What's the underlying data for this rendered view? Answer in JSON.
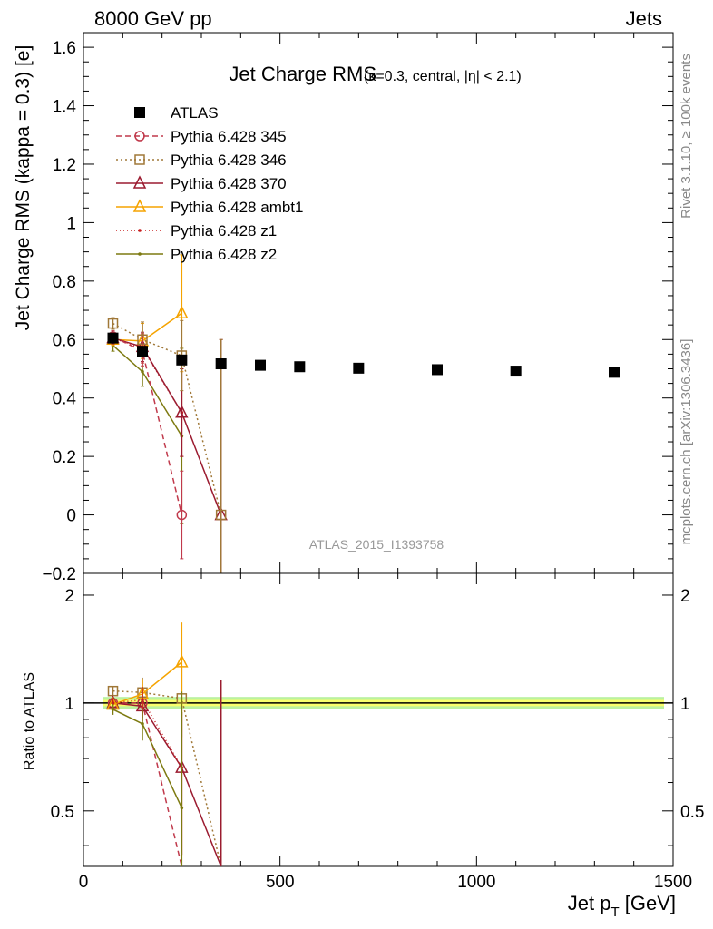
{
  "header": {
    "left": "8000 GeV pp",
    "right": "Jets"
  },
  "side": {
    "rivet": "Rivet 3.1.10, ≥ 100k events",
    "mcplots": "mcplots.cern.ch [arXiv:1306.3436]"
  },
  "chart_data": [
    {
      "type": "scatter",
      "title": "Jet Charge RMS",
      "subtitle": "(κ=0.3, central, |η| < 2.1)",
      "xlabel": "Jet p",
      "xlabel_sub": "T",
      "xlabel_unit": " [GeV]",
      "ylabel": "Jet Charge RMS (kappa = 0.3) [e]",
      "watermark": "ATLAS_2015_I1393758",
      "xlim": [
        0,
        1500
      ],
      "ylim": [
        -0.2,
        1.65
      ],
      "xticks": [
        0,
        500,
        1000,
        1500
      ],
      "yticks": [
        -0.2,
        0,
        0.2,
        0.4,
        0.6,
        0.8,
        1,
        1.2,
        1.4,
        1.6
      ],
      "ytick_labels": [
        "−0.2",
        "0",
        "0.2",
        "0.4",
        "0.6",
        "0.8",
        "1",
        "1.2",
        "1.4",
        "1.6"
      ],
      "legend_position": "top-left",
      "series": [
        {
          "name": "ATLAS",
          "color": "#000000",
          "marker": "square-filled",
          "dash": "none",
          "x": [
            75,
            150,
            250,
            350,
            450,
            550,
            700,
            900,
            1100,
            1350
          ],
          "y": [
            0.605,
            0.56,
            0.53,
            0.517,
            0.512,
            0.507,
            0.502,
            0.497,
            0.492,
            0.488
          ],
          "err": [
            0.012,
            0.01,
            0.01,
            0.01,
            0.01,
            0.01,
            0.01,
            0.01,
            0.01,
            0.01
          ]
        },
        {
          "name": "Pythia 6.428 345",
          "color": "#c0394b",
          "marker": "circle-open",
          "dash": "6,4",
          "x": [
            75,
            150,
            250
          ],
          "y": [
            0.61,
            0.56,
            0.0
          ],
          "err": [
            0.02,
            0.05,
            0.15
          ]
        },
        {
          "name": "Pythia 6.428 346",
          "color": "#a07838",
          "marker": "square-open",
          "dash": "2,3",
          "x": [
            75,
            150,
            250,
            350
          ],
          "y": [
            0.655,
            0.6,
            0.545,
            0.0
          ],
          "err": [
            0.02,
            0.06,
            0.12,
            0.6
          ]
        },
        {
          "name": "Pythia 6.428 370",
          "color": "#9b1b30",
          "marker": "triangle-open",
          "dash": "none",
          "x": [
            75,
            150,
            250,
            350
          ],
          "y": [
            0.605,
            0.575,
            0.35,
            0.0
          ],
          "err": [
            0.02,
            0.05,
            0.15,
            0.6
          ]
        },
        {
          "name": "Pythia 6.428 ambt1",
          "color": "#f5a300",
          "marker": "triangle-open",
          "dash": "none",
          "x": [
            75,
            150,
            250
          ],
          "y": [
            0.6,
            0.595,
            0.69
          ],
          "err": [
            0.02,
            0.06,
            0.2
          ]
        },
        {
          "name": "Pythia 6.428 z1",
          "color": "#c81e1e",
          "marker": "dot",
          "dash": "1,3",
          "x": [
            75,
            150,
            250
          ],
          "y": [
            0.605,
            0.57,
            0.35
          ],
          "err": [
            0.02,
            0.05,
            0.15
          ]
        },
        {
          "name": "Pythia 6.428 z2",
          "color": "#7d7a10",
          "marker": "dot",
          "dash": "none",
          "x": [
            75,
            150,
            250
          ],
          "y": [
            0.58,
            0.49,
            0.27
          ],
          "err": [
            0.02,
            0.05,
            0.3
          ]
        }
      ]
    },
    {
      "type": "line",
      "ylabel": "Ratio to ATLAS",
      "xlabel": "Jet p",
      "xlabel_sub": "T",
      "xlabel_unit": " [GeV]",
      "xlim": [
        0,
        1500
      ],
      "ylim": [
        0.35,
        2.3
      ],
      "log_y": true,
      "xticks": [
        0,
        500,
        1000,
        1500
      ],
      "yticks": [
        0.5,
        1,
        2
      ],
      "ytick_labels": [
        "0.5",
        "1",
        "2"
      ],
      "reference": 1,
      "band": {
        "x": [
          0,
          1500
        ],
        "inner": 0.02,
        "outer": 0.04,
        "inner_color": "#ffff66",
        "outer_color": "#aaee88"
      },
      "series": [
        {
          "name": "Pythia 6.428 345",
          "x": [
            75,
            150,
            250
          ],
          "y": [
            1.0,
            1.0,
            0.0
          ]
        },
        {
          "name": "Pythia 6.428 346",
          "x": [
            75,
            150,
            250,
            350
          ],
          "y": [
            1.08,
            1.07,
            1.03,
            0.0
          ]
        },
        {
          "name": "Pythia 6.428 370",
          "x": [
            75,
            150,
            250,
            350
          ],
          "y": [
            1.0,
            0.98,
            0.66,
            0.0
          ]
        },
        {
          "name": "Pythia 6.428 ambt1",
          "x": [
            75,
            150,
            250
          ],
          "y": [
            0.99,
            1.06,
            1.3
          ]
        },
        {
          "name": "Pythia 6.428 z1",
          "x": [
            75,
            150,
            250
          ],
          "y": [
            1.0,
            1.02,
            0.66
          ]
        },
        {
          "name": "Pythia 6.428 z2",
          "x": [
            75,
            150,
            250
          ],
          "y": [
            0.96,
            0.875,
            0.51
          ]
        }
      ]
    }
  ]
}
